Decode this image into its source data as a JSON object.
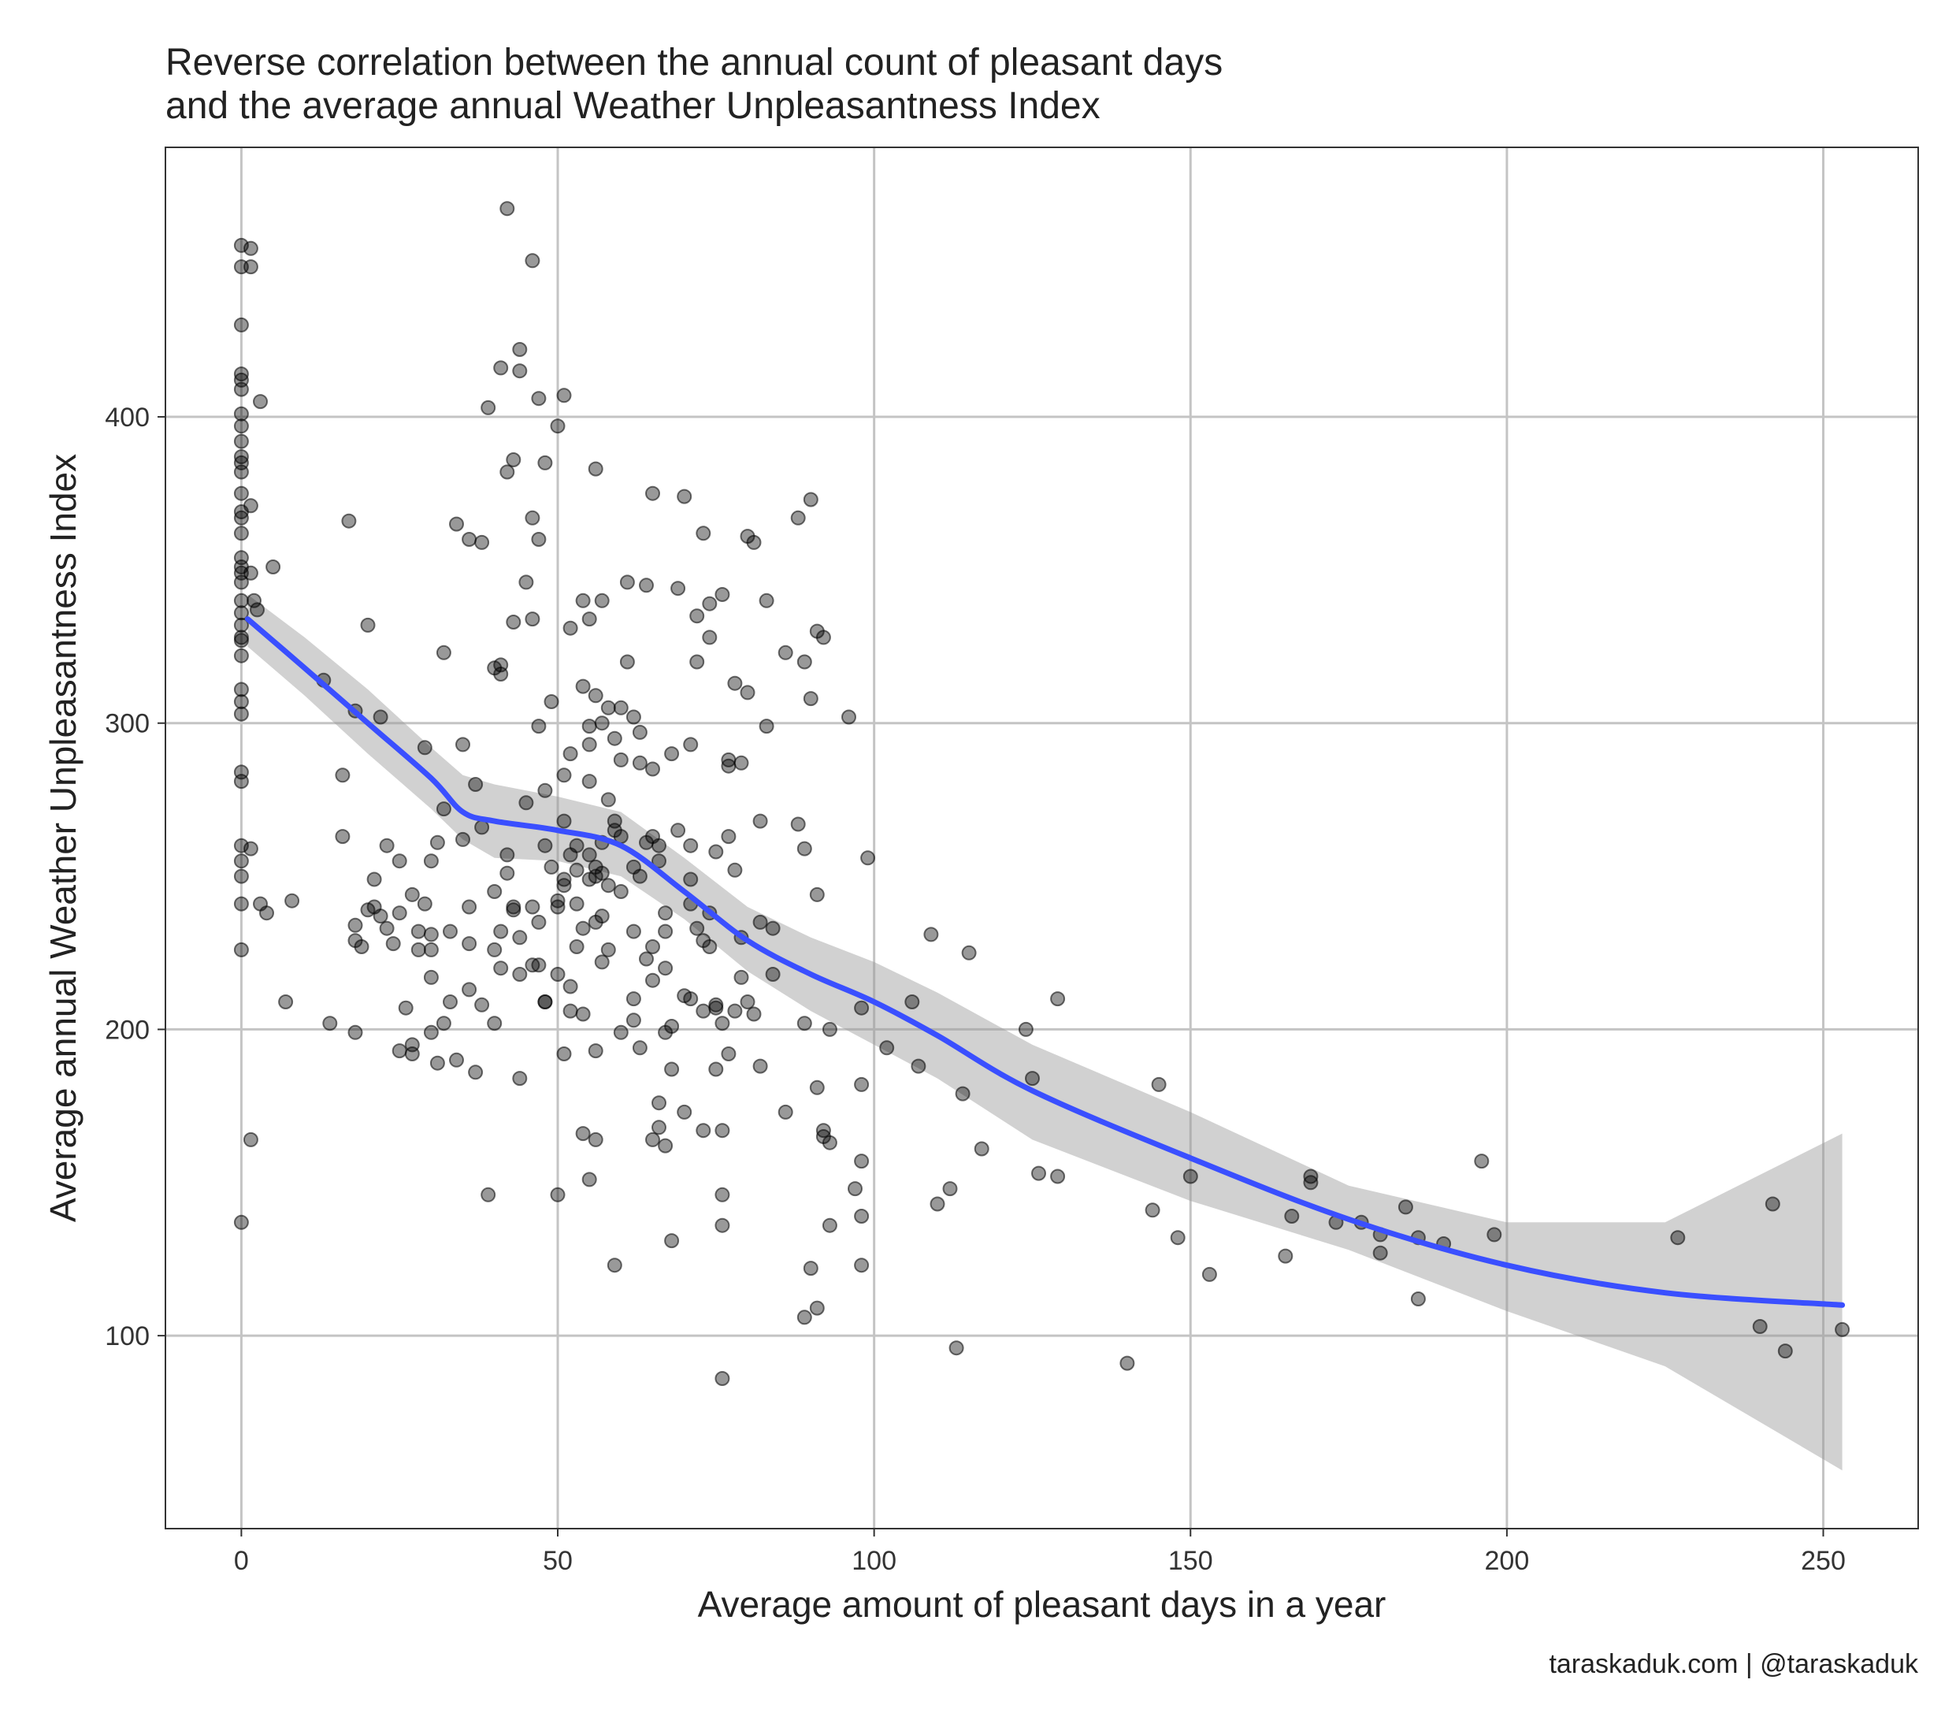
{
  "chart_data": {
    "type": "scatter",
    "title": "Reverse correlation between the annual count of pleasant days\nand the average annual Weather Unpleasantness Index",
    "title_lines": [
      "Reverse correlation between the annual count of pleasant days",
      "and the average annual Weather Unpleasantness Index"
    ],
    "xlabel": "Average amount of pleasant days in a year",
    "ylabel": "Average annual Weather Unpleasantness Index",
    "caption": "taraskaduk.com | @taraskaduk",
    "xlim": [
      -12,
      265
    ],
    "ylim": [
      37,
      488
    ],
    "xticks": [
      0,
      50,
      100,
      150,
      200,
      250
    ],
    "yticks": [
      100,
      200,
      300,
      400
    ],
    "grid": true,
    "legend": "none",
    "colors": {
      "points": "#000000",
      "smooth": "#3a4fff",
      "ribbon": "#999999",
      "grid": "#c4c4c4",
      "frame": "#333333"
    },
    "points": [
      [
        0,
        456
      ],
      [
        0,
        449
      ],
      [
        0,
        430
      ],
      [
        0,
        414
      ],
      [
        0,
        412
      ],
      [
        0,
        409
      ],
      [
        0,
        401
      ],
      [
        0,
        397
      ],
      [
        0,
        392
      ],
      [
        0,
        387
      ],
      [
        0,
        385
      ],
      [
        0,
        382
      ],
      [
        0,
        375
      ],
      [
        0,
        369
      ],
      [
        0,
        367
      ],
      [
        0,
        362
      ],
      [
        0,
        354
      ],
      [
        0,
        351
      ],
      [
        0,
        349
      ],
      [
        0,
        346
      ],
      [
        0,
        340
      ],
      [
        0,
        336
      ],
      [
        0,
        332
      ],
      [
        0,
        328
      ],
      [
        0,
        327
      ],
      [
        0,
        322
      ],
      [
        0,
        311
      ],
      [
        0,
        307
      ],
      [
        0,
        303
      ],
      [
        0,
        284
      ],
      [
        0,
        281
      ],
      [
        0,
        260
      ],
      [
        0,
        255
      ],
      [
        0,
        250
      ],
      [
        0,
        241
      ],
      [
        0,
        226
      ],
      [
        0,
        137
      ],
      [
        1.5,
        455
      ],
      [
        1.5,
        449
      ],
      [
        1.5,
        371
      ],
      [
        1.5,
        349
      ],
      [
        1.5,
        259
      ],
      [
        1.5,
        164
      ],
      [
        2,
        340
      ],
      [
        2.5,
        337
      ],
      [
        3,
        405
      ],
      [
        3,
        241
      ],
      [
        4,
        238
      ],
      [
        5,
        351
      ],
      [
        7,
        209
      ],
      [
        8,
        242
      ],
      [
        13,
        314
      ],
      [
        14,
        202
      ],
      [
        16,
        283
      ],
      [
        16,
        263
      ],
      [
        17,
        366
      ],
      [
        18,
        234
      ],
      [
        18,
        229
      ],
      [
        18,
        199
      ],
      [
        18,
        304
      ],
      [
        19,
        227
      ],
      [
        20,
        239
      ],
      [
        20,
        332
      ],
      [
        21,
        249
      ],
      [
        21,
        240
      ],
      [
        22,
        302
      ],
      [
        22,
        237
      ],
      [
        23,
        260
      ],
      [
        23,
        233
      ],
      [
        24,
        228
      ],
      [
        25,
        255
      ],
      [
        25,
        238
      ],
      [
        25,
        193
      ],
      [
        26,
        207
      ],
      [
        27,
        244
      ],
      [
        27,
        192
      ],
      [
        27,
        195
      ],
      [
        28,
        232
      ],
      [
        28,
        226
      ],
      [
        29,
        241
      ],
      [
        29,
        292
      ],
      [
        30,
        231
      ],
      [
        30,
        226
      ],
      [
        30,
        217
      ],
      [
        30,
        199
      ],
      [
        30,
        255
      ],
      [
        31,
        261
      ],
      [
        31,
        189
      ],
      [
        32,
        323
      ],
      [
        32,
        272
      ],
      [
        32,
        202
      ],
      [
        33,
        232
      ],
      [
        33,
        209
      ],
      [
        34,
        365
      ],
      [
        34,
        190
      ],
      [
        35,
        293
      ],
      [
        35,
        262
      ],
      [
        36,
        360
      ],
      [
        36,
        213
      ],
      [
        36,
        228
      ],
      [
        36,
        240
      ],
      [
        37,
        280
      ],
      [
        37,
        186
      ],
      [
        38,
        359
      ],
      [
        38,
        266
      ],
      [
        38,
        208
      ],
      [
        39,
        403
      ],
      [
        39,
        146
      ],
      [
        40,
        318
      ],
      [
        40,
        245
      ],
      [
        40,
        226
      ],
      [
        40,
        202
      ],
      [
        41,
        416
      ],
      [
        41,
        316
      ],
      [
        41,
        319
      ],
      [
        41,
        232
      ],
      [
        41,
        220
      ],
      [
        42,
        468
      ],
      [
        42,
        382
      ],
      [
        42,
        251
      ],
      [
        42,
        257
      ],
      [
        43,
        386
      ],
      [
        43,
        240
      ],
      [
        43,
        333
      ],
      [
        43,
        239
      ],
      [
        44,
        422
      ],
      [
        44,
        415
      ],
      [
        44,
        218
      ],
      [
        44,
        230
      ],
      [
        44,
        184
      ],
      [
        45,
        274
      ],
      [
        45,
        346
      ],
      [
        46,
        334
      ],
      [
        46,
        221
      ],
      [
        46,
        240
      ],
      [
        46,
        451
      ],
      [
        46,
        367
      ],
      [
        47,
        406
      ],
      [
        47,
        360
      ],
      [
        47,
        299
      ],
      [
        47,
        235
      ],
      [
        47,
        221
      ],
      [
        48,
        278
      ],
      [
        48,
        385
      ],
      [
        48,
        260
      ],
      [
        48,
        209
      ],
      [
        48,
        209
      ],
      [
        49,
        307
      ],
      [
        49,
        253
      ],
      [
        50,
        240
      ],
      [
        50,
        218
      ],
      [
        50,
        397
      ],
      [
        50,
        146
      ],
      [
        50,
        242
      ],
      [
        51,
        283
      ],
      [
        51,
        192
      ],
      [
        51,
        268
      ],
      [
        51,
        407
      ],
      [
        51,
        247
      ],
      [
        51,
        249
      ],
      [
        52,
        257
      ],
      [
        52,
        331
      ],
      [
        52,
        290
      ],
      [
        52,
        206
      ],
      [
        52,
        214
      ],
      [
        53,
        241
      ],
      [
        53,
        260
      ],
      [
        53,
        227
      ],
      [
        53,
        252
      ],
      [
        54,
        312
      ],
      [
        54,
        233
      ],
      [
        54,
        166
      ],
      [
        54,
        205
      ],
      [
        54,
        340
      ],
      [
        55,
        334
      ],
      [
        55,
        299
      ],
      [
        55,
        281
      ],
      [
        55,
        293
      ],
      [
        55,
        257
      ],
      [
        55,
        151
      ],
      [
        55,
        249
      ],
      [
        56,
        383
      ],
      [
        56,
        164
      ],
      [
        56,
        193
      ],
      [
        56,
        235
      ],
      [
        56,
        253
      ],
      [
        56,
        250
      ],
      [
        56,
        309
      ],
      [
        57,
        251
      ],
      [
        57,
        340
      ],
      [
        57,
        300
      ],
      [
        57,
        261
      ],
      [
        57,
        222
      ],
      [
        57,
        237
      ],
      [
        58,
        305
      ],
      [
        58,
        275
      ],
      [
        58,
        247
      ],
      [
        58,
        226
      ],
      [
        59,
        295
      ],
      [
        59,
        265
      ],
      [
        59,
        123
      ],
      [
        59,
        268
      ],
      [
        60,
        305
      ],
      [
        60,
        288
      ],
      [
        60,
        263
      ],
      [
        60,
        199
      ],
      [
        60,
        245
      ],
      [
        61,
        320
      ],
      [
        61,
        346
      ],
      [
        62,
        302
      ],
      [
        62,
        232
      ],
      [
        62,
        210
      ],
      [
        62,
        253
      ],
      [
        62,
        203
      ],
      [
        63,
        297
      ],
      [
        63,
        287
      ],
      [
        63,
        250
      ],
      [
        63,
        194
      ],
      [
        64,
        261
      ],
      [
        64,
        223
      ],
      [
        64,
        345
      ],
      [
        65,
        263
      ],
      [
        65,
        216
      ],
      [
        65,
        375
      ],
      [
        65,
        227
      ],
      [
        65,
        164
      ],
      [
        65,
        285
      ],
      [
        66,
        260
      ],
      [
        66,
        168
      ],
      [
        66,
        255
      ],
      [
        66,
        176
      ],
      [
        67,
        238
      ],
      [
        67,
        220
      ],
      [
        67,
        232
      ],
      [
        67,
        199
      ],
      [
        67,
        162
      ],
      [
        68,
        290
      ],
      [
        68,
        201
      ],
      [
        68,
        187
      ],
      [
        68,
        131
      ],
      [
        69,
        344
      ],
      [
        69,
        265
      ],
      [
        70,
        173
      ],
      [
        70,
        374
      ],
      [
        70,
        211
      ],
      [
        71,
        293
      ],
      [
        71,
        260
      ],
      [
        71,
        249
      ],
      [
        71,
        241
      ],
      [
        71,
        210
      ],
      [
        72,
        320
      ],
      [
        72,
        233
      ],
      [
        72,
        335
      ],
      [
        73,
        229
      ],
      [
        73,
        167
      ],
      [
        73,
        362
      ],
      [
        73,
        206
      ],
      [
        74,
        328
      ],
      [
        74,
        339
      ],
      [
        74,
        238
      ],
      [
        74,
        227
      ],
      [
        75,
        207
      ],
      [
        75,
        258
      ],
      [
        75,
        208
      ],
      [
        75,
        187
      ],
      [
        76,
        342
      ],
      [
        76,
        202
      ],
      [
        76,
        167
      ],
      [
        76,
        136
      ],
      [
        76,
        146
      ],
      [
        76,
        86
      ],
      [
        77,
        192
      ],
      [
        77,
        286
      ],
      [
        77,
        263
      ],
      [
        77,
        288
      ],
      [
        78,
        313
      ],
      [
        78,
        252
      ],
      [
        78,
        206
      ],
      [
        79,
        230
      ],
      [
        79,
        287
      ],
      [
        79,
        217
      ],
      [
        80,
        310
      ],
      [
        80,
        361
      ],
      [
        80,
        209
      ],
      [
        81,
        359
      ],
      [
        81,
        205
      ],
      [
        82,
        188
      ],
      [
        82,
        235
      ],
      [
        82,
        268
      ],
      [
        83,
        299
      ],
      [
        83,
        340
      ],
      [
        84,
        218
      ],
      [
        84,
        233
      ],
      [
        86,
        323
      ],
      [
        86,
        173
      ],
      [
        88,
        267
      ],
      [
        88,
        367
      ],
      [
        89,
        320
      ],
      [
        89,
        259
      ],
      [
        89,
        202
      ],
      [
        89,
        106
      ],
      [
        90,
        373
      ],
      [
        90,
        122
      ],
      [
        90,
        308
      ],
      [
        91,
        244
      ],
      [
        91,
        181
      ],
      [
        91,
        330
      ],
      [
        91,
        109
      ],
      [
        92,
        328
      ],
      [
        92,
        167
      ],
      [
        92,
        165
      ],
      [
        93,
        200
      ],
      [
        93,
        163
      ],
      [
        93,
        136
      ],
      [
        96,
        302
      ],
      [
        97,
        148
      ],
      [
        98,
        182
      ],
      [
        98,
        157
      ],
      [
        98,
        139
      ],
      [
        98,
        207
      ],
      [
        98,
        123
      ],
      [
        99,
        256
      ],
      [
        102,
        194
      ],
      [
        106,
        209
      ],
      [
        107,
        188
      ],
      [
        109,
        231
      ],
      [
        110,
        143
      ],
      [
        112,
        148
      ],
      [
        113,
        96
      ],
      [
        114,
        179
      ],
      [
        115,
        225
      ],
      [
        117,
        161
      ],
      [
        124,
        200
      ],
      [
        125,
        184
      ],
      [
        126,
        153
      ],
      [
        129,
        210
      ],
      [
        129,
        152
      ],
      [
        140,
        91
      ],
      [
        144,
        141
      ],
      [
        145,
        182
      ],
      [
        148,
        132
      ],
      [
        150,
        152
      ],
      [
        153,
        120
      ],
      [
        165,
        126
      ],
      [
        166,
        139
      ],
      [
        169,
        150
      ],
      [
        169,
        152
      ],
      [
        173,
        137
      ],
      [
        177,
        137
      ],
      [
        180,
        133
      ],
      [
        180,
        127
      ],
      [
        184,
        142
      ],
      [
        186,
        112
      ],
      [
        186,
        132
      ],
      [
        190,
        130
      ],
      [
        196,
        157
      ],
      [
        198,
        133
      ],
      [
        227,
        132
      ],
      [
        240,
        103
      ],
      [
        242,
        143
      ],
      [
        244,
        95
      ],
      [
        253,
        102
      ]
    ],
    "smooth": {
      "x": [
        1,
        10,
        20,
        30,
        35,
        40,
        50,
        60,
        70,
        80,
        90,
        100,
        110,
        125,
        150,
        175,
        200,
        225,
        253
      ],
      "y": [
        334,
        318,
        300,
        282,
        271,
        268,
        265,
        260,
        245,
        229,
        218,
        209,
        198,
        180,
        158,
        138,
        123,
        114,
        110
      ],
      "lower": [
        325,
        309,
        290,
        272,
        262,
        256,
        255,
        250,
        236,
        219,
        206,
        195,
        184,
        164,
        144,
        128,
        108,
        90,
        56
      ],
      "upper": [
        342,
        328,
        311,
        292,
        283,
        280,
        276,
        271,
        256,
        240,
        230,
        222,
        212,
        195,
        173,
        149,
        137,
        137,
        166
      ]
    }
  }
}
